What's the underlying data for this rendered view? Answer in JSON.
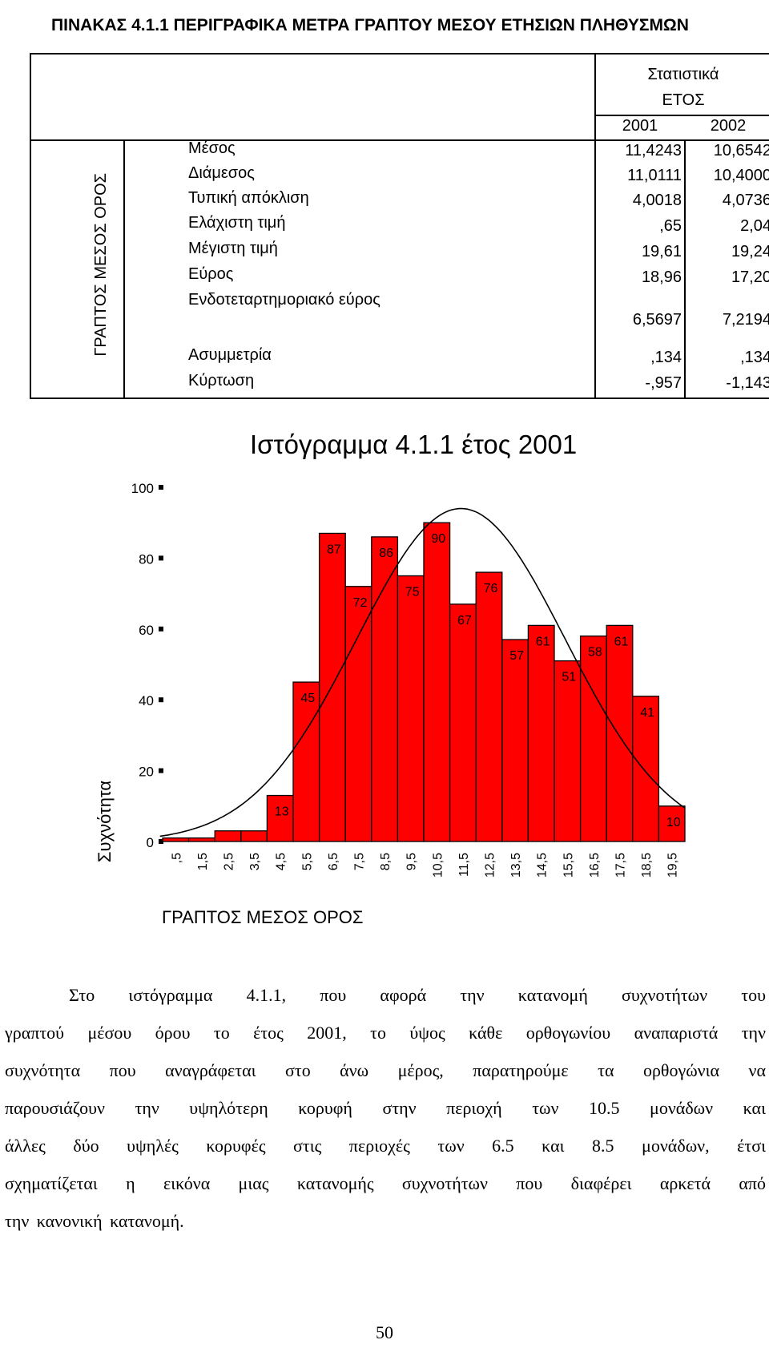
{
  "table": {
    "title": "ΠΙΝΑΚΑΣ 4.1.1 ΠΕΡΙΓΡΑΦΙΚΑ ΜΕΤΡΑ ΓΡΑΠΤΟΥ ΜΕΣΟΥ  ΕΤΗΣΙΩΝ ΠΛΗΘΥΣΜΩΝ",
    "header_stats": "Στατιστικά",
    "header_year": "ΕΤΟΣ",
    "years": [
      "2001",
      "2002"
    ],
    "row_group": "ΓΡΑΠΤΟΣ ΜΕΣΟΣ ΟΡΟΣ",
    "rows": [
      {
        "label": "Μέσος",
        "v2001": "11,4243",
        "v2002": "10,6542"
      },
      {
        "label": "Διάμεσος",
        "v2001": "11,0111",
        "v2002": "10,4000"
      },
      {
        "label": "Τυπική απόκλιση",
        "v2001": "4,0018",
        "v2002": "4,0736"
      },
      {
        "label": "Ελάχιστη τιμή",
        "v2001": ",65",
        "v2002": "2,04"
      },
      {
        "label": "Μέγιστη τιμή",
        "v2001": "19,61",
        "v2002": "19,24"
      },
      {
        "label": "Εύρος",
        "v2001": "18,96",
        "v2002": "17,20"
      },
      {
        "label": "Ενδοτεταρτημοριακό εύρος",
        "v2001": "6,5697",
        "v2002": "7,2194"
      },
      {
        "label": "Ασυμμετρία",
        "v2001": ",134",
        "v2002": ",134"
      },
      {
        "label": "Κύρτωση",
        "v2001": "-,957",
        "v2002": "-1,143"
      }
    ]
  },
  "chart_data": {
    "type": "bar",
    "title": "Ιστόγραμμα 4.1.1  έτος 2001",
    "xlabel": "ΓΡΑΠΤΟΣ ΜΕΣΟΣ ΟΡΟΣ",
    "ylabel": "Συχνότητα",
    "ylim": [
      0,
      100
    ],
    "yticks": [
      "0",
      "20",
      "40",
      "60",
      "80",
      "100"
    ],
    "categories": [
      ",5",
      "1,5",
      "2,5",
      "3,5",
      "4,5",
      "5,5",
      "6,5",
      "7,5",
      "8,5",
      "9,5",
      "10,5",
      "11,5",
      "12,5",
      "13,5",
      "14,5",
      "15,5",
      "16,5",
      "17,5",
      "18,5",
      "19,5"
    ],
    "values": [
      1,
      1,
      3,
      3,
      13,
      45,
      87,
      72,
      86,
      75,
      90,
      67,
      76,
      57,
      61,
      51,
      58,
      61,
      41,
      10
    ],
    "data_labels": [
      "",
      "",
      "",
      "",
      "13",
      "45",
      "87",
      "72",
      "86",
      "75",
      "90",
      "67",
      "76",
      "57",
      "61",
      "51",
      "58",
      "61",
      "41",
      "10"
    ],
    "bar_color": "#ff0000",
    "curve": "normal fit"
  },
  "paragraph": [
    "Στο ιστόγραμμα 4.1.1, που αφορά την κατανομή συχνοτήτων του",
    "γραπτού μέσου όρου το έτος 2001, το ύψος κάθε ορθογωνίου αναπαριστά την",
    "συχνότητα που αναγράφεται στο άνω μέρος, παρατηρούμε τα ορθογώνια να",
    "παρουσιάζουν την υψηλότερη κορυφή στην περιοχή των 10.5 μονάδων και",
    "άλλες δύο υψηλές κορυφές στις περιοχές των 6.5 και 8.5 μονάδων, έτσι",
    "σχηματίζεται η εικόνα μιας κατανομής συχνοτήτων που διαφέρει αρκετά από",
    "την κανονική κατανομή."
  ],
  "page_number": "50"
}
